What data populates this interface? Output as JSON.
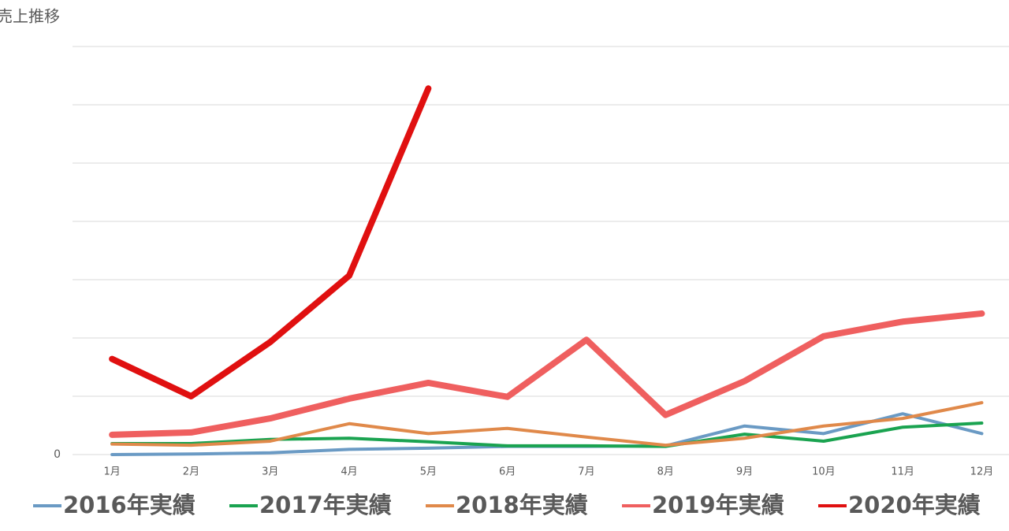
{
  "chart_data": {
    "type": "line",
    "title": "売上推移",
    "categories": [
      "1月",
      "2月",
      "3月",
      "4月",
      "5月",
      "6月",
      "7月",
      "8月",
      "9月",
      "10月",
      "11月",
      "12月"
    ],
    "series": [
      {
        "name": "2016年実績",
        "color": "#6a9ac4",
        "line_width": 4,
        "values": [
          0,
          0.01,
          0.03,
          0.09,
          0.11,
          0.14,
          0.14,
          0.15,
          0.49,
          0.36,
          0.7,
          0.36
        ]
      },
      {
        "name": "2017年実績",
        "color": "#1aa350",
        "line_width": 4,
        "values": [
          0.19,
          0.19,
          0.26,
          0.28,
          0.22,
          0.15,
          0.15,
          0.14,
          0.35,
          0.23,
          0.47,
          0.54
        ]
      },
      {
        "name": "2018年実績",
        "color": "#e0894a",
        "line_width": 4,
        "values": [
          0.18,
          0.16,
          0.23,
          0.53,
          0.36,
          0.45,
          0.3,
          0.16,
          0.28,
          0.49,
          0.62,
          0.89
        ]
      },
      {
        "name": "2019年実績",
        "color": "#ef5f5f",
        "line_width": 8,
        "values": [
          0.34,
          0.38,
          0.62,
          0.96,
          1.23,
          0.99,
          1.97,
          0.68,
          1.26,
          2.03,
          2.28,
          2.42
        ]
      },
      {
        "name": "2020年実績",
        "color": "#e01010",
        "line_width": 8,
        "values": [
          1.64,
          1.0,
          1.93,
          3.07,
          6.28,
          null,
          null,
          null,
          null,
          null,
          null,
          null
        ]
      }
    ],
    "ylim": [
      0,
      7
    ],
    "yticks": [
      0
    ],
    "ygrid": [
      0,
      1,
      2,
      3,
      4,
      5,
      6,
      7
    ],
    "grid": true,
    "legend": "bottom"
  }
}
